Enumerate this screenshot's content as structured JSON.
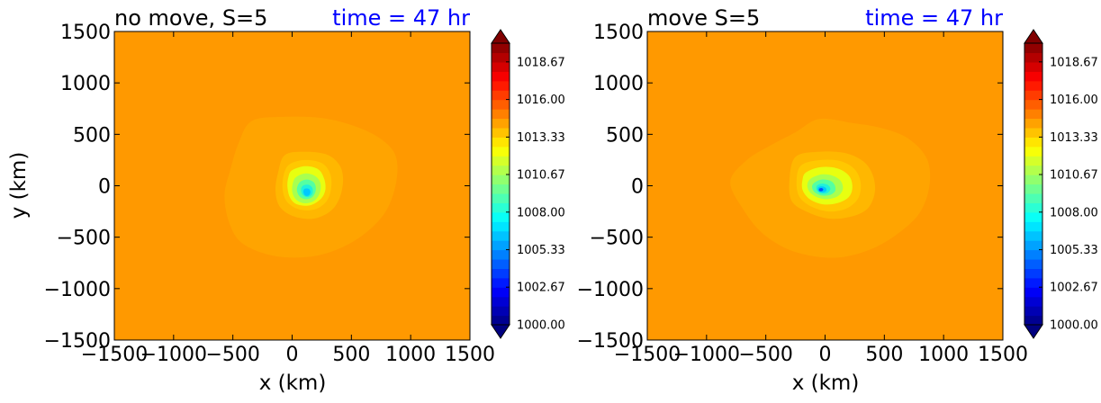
{
  "chart_data": [
    {
      "type": "contourf",
      "title_left": "no move, S=5",
      "title_right": "time = 47 hr",
      "title_right_color": "#0000ff",
      "xlabel": "x (km)",
      "ylabel": "y (km)",
      "xlim": [
        -1500,
        1500
      ],
      "ylim": [
        -1500,
        1500
      ],
      "xticks": [
        -1500,
        -1000,
        -500,
        0,
        500,
        1000,
        1500
      ],
      "yticks": [
        -1500,
        -1000,
        -500,
        0,
        500,
        1000,
        1500
      ],
      "xtick_labels": [
        "−1500",
        "−1000",
        "−500",
        "0",
        "500",
        "1000",
        "1500"
      ],
      "ytick_labels": [
        "−1500",
        "−1000",
        "−500",
        "0",
        "500",
        "1000",
        "1500"
      ],
      "center_km": [
        110,
        -70
      ],
      "min_value_approx": 1007.5,
      "background_value_approx": 1015.5,
      "colorbar": {
        "min": 1000.0,
        "max": 1020.0,
        "levels": 30,
        "extend": "both",
        "tick_labels": [
          "1000.00",
          "1002.67",
          "1005.33",
          "1008.00",
          "1010.67",
          "1013.33",
          "1016.00",
          "1018.67"
        ]
      },
      "contour_rings": [
        {
          "color": "#ffa400",
          "points": [
            [
              -340,
              630
            ],
            [
              -80,
              670
            ],
            [
              240,
              660
            ],
            [
              500,
              590
            ],
            [
              730,
              470
            ],
            [
              870,
              300
            ],
            [
              880,
              50
            ],
            [
              800,
              -230
            ],
            [
              640,
              -440
            ],
            [
              420,
              -600
            ],
            [
              150,
              -690
            ],
            [
              -160,
              -680
            ],
            [
              -420,
              -560
            ],
            [
              -530,
              -360
            ],
            [
              -570,
              -90
            ],
            [
              -520,
              160
            ],
            [
              -450,
              420
            ]
          ]
        },
        {
          "color": "#ffb700",
          "points": [
            [
              -60,
              300
            ],
            [
              120,
              330
            ],
            [
              300,
              300
            ],
            [
              400,
              200
            ],
            [
              430,
              60
            ],
            [
              400,
              -120
            ],
            [
              320,
              -250
            ],
            [
              180,
              -320
            ],
            [
              20,
              -300
            ],
            [
              -100,
              -210
            ],
            [
              -140,
              -60
            ],
            [
              -120,
              120
            ]
          ]
        },
        {
          "color": "#ffc800",
          "points": [
            [
              -20,
              210
            ],
            [
              110,
              250
            ],
            [
              250,
              220
            ],
            [
              320,
              120
            ],
            [
              330,
              -20
            ],
            [
              290,
              -150
            ],
            [
              190,
              -230
            ],
            [
              60,
              -230
            ],
            [
              -40,
              -160
            ],
            [
              -80,
              -40
            ],
            [
              -70,
              110
            ]
          ]
        },
        {
          "color": "#e8ff10",
          "points": [
            [
              0,
              150
            ],
            [
              110,
              190
            ],
            [
              220,
              160
            ],
            [
              270,
              70
            ],
            [
              280,
              -40
            ],
            [
              240,
              -130
            ],
            [
              150,
              -190
            ],
            [
              40,
              -180
            ],
            [
              -20,
              -110
            ],
            [
              -40,
              0
            ],
            [
              -30,
              90
            ]
          ]
        },
        {
          "color": "#a8ff50",
          "points": [
            [
              40,
              90
            ],
            [
              120,
              120
            ],
            [
              200,
              90
            ],
            [
              240,
              20
            ],
            [
              230,
              -80
            ],
            [
              180,
              -150
            ],
            [
              100,
              -170
            ],
            [
              30,
              -130
            ],
            [
              0,
              -50
            ],
            [
              10,
              40
            ]
          ]
        },
        {
          "color": "#55ffa2",
          "points": [
            [
              70,
              40
            ],
            [
              130,
              60
            ],
            [
              185,
              30
            ],
            [
              200,
              -40
            ],
            [
              170,
              -110
            ],
            [
              110,
              -130
            ],
            [
              60,
              -100
            ],
            [
              40,
              -30
            ]
          ]
        },
        {
          "color": "#1ff0dc",
          "points": [
            [
              90,
              0
            ],
            [
              135,
              10
            ],
            [
              170,
              -20
            ],
            [
              170,
              -80
            ],
            [
              130,
              -110
            ],
            [
              90,
              -90
            ],
            [
              75,
              -40
            ]
          ]
        },
        {
          "color": "#00c8ff",
          "points": [
            [
              105,
              -30
            ],
            [
              140,
              -30
            ],
            [
              155,
              -60
            ],
            [
              140,
              -95
            ],
            [
              110,
              -95
            ],
            [
              95,
              -60
            ]
          ]
        }
      ]
    },
    {
      "type": "contourf",
      "title_left": "move S=5",
      "title_right": "time = 47 hr",
      "title_right_color": "#0000ff",
      "xlabel": "x (km)",
      "ylabel": "",
      "xlim": [
        -1500,
        1500
      ],
      "ylim": [
        -1500,
        1500
      ],
      "xticks": [
        -1500,
        -1000,
        -500,
        0,
        500,
        1000,
        1500
      ],
      "yticks": [
        -1500,
        -1000,
        -500,
        0,
        500,
        1000,
        1500
      ],
      "xtick_labels": [
        "−1500",
        "−1000",
        "−500",
        "0",
        "500",
        "1000",
        "1500"
      ],
      "ytick_labels": [
        "−1500",
        "−1000",
        "−500",
        "0",
        "500",
        "1000",
        "1500"
      ],
      "center_km": [
        -40,
        -40
      ],
      "min_value_approx": 1005.5,
      "background_value_approx": 1015.5,
      "colorbar": {
        "min": 1000.0,
        "max": 1020.0,
        "levels": 30,
        "extend": "both",
        "tick_labels": [
          "1000.00",
          "1002.67",
          "1005.33",
          "1008.00",
          "1010.67",
          "1013.33",
          "1016.00",
          "1018.67"
        ]
      },
      "contour_rings": [
        {
          "color": "#ffa400",
          "points": [
            [
              -480,
              380
            ],
            [
              -250,
              520
            ],
            [
              -50,
              650
            ],
            [
              230,
              610
            ],
            [
              480,
              560
            ],
            [
              700,
              460
            ],
            [
              860,
              260
            ],
            [
              880,
              0
            ],
            [
              800,
              -260
            ],
            [
              620,
              -460
            ],
            [
              380,
              -620
            ],
            [
              80,
              -700
            ],
            [
              -260,
              -640
            ],
            [
              -520,
              -470
            ],
            [
              -690,
              -230
            ],
            [
              -800,
              40
            ],
            [
              -660,
              250
            ]
          ]
        },
        {
          "color": "#ffb700",
          "points": [
            [
              -250,
              280
            ],
            [
              -60,
              330
            ],
            [
              160,
              320
            ],
            [
              320,
              240
            ],
            [
              400,
              110
            ],
            [
              420,
              -60
            ],
            [
              360,
              -220
            ],
            [
              220,
              -300
            ],
            [
              40,
              -320
            ],
            [
              -140,
              -260
            ],
            [
              -280,
              -150
            ],
            [
              -300,
              60
            ]
          ]
        },
        {
          "color": "#ffc800",
          "points": [
            [
              -200,
              200
            ],
            [
              -40,
              250
            ],
            [
              130,
              240
            ],
            [
              250,
              160
            ],
            [
              300,
              30
            ],
            [
              280,
              -120
            ],
            [
              180,
              -220
            ],
            [
              30,
              -250
            ],
            [
              -120,
              -200
            ],
            [
              -220,
              -100
            ],
            [
              -240,
              60
            ]
          ]
        },
        {
          "color": "#e8ff10",
          "points": [
            [
              -160,
              130
            ],
            [
              -40,
              180
            ],
            [
              100,
              170
            ],
            [
              200,
              100
            ],
            [
              230,
              -10
            ],
            [
              200,
              -110
            ],
            [
              100,
              -170
            ],
            [
              -20,
              -180
            ],
            [
              -130,
              -130
            ],
            [
              -190,
              -40
            ],
            [
              -190,
              60
            ]
          ]
        },
        {
          "color": "#a8ff50",
          "points": [
            [
              -120,
              70
            ],
            [
              -30,
              110
            ],
            [
              60,
              100
            ],
            [
              130,
              50
            ],
            [
              150,
              -30
            ],
            [
              110,
              -100
            ],
            [
              20,
              -130
            ],
            [
              -70,
              -110
            ],
            [
              -130,
              -60
            ],
            [
              -150,
              10
            ]
          ]
        },
        {
          "color": "#55ffa2",
          "points": [
            [
              -90,
              30
            ],
            [
              -30,
              60
            ],
            [
              40,
              50
            ],
            [
              80,
              10
            ],
            [
              85,
              -50
            ],
            [
              40,
              -90
            ],
            [
              -30,
              -95
            ],
            [
              -90,
              -60
            ],
            [
              -110,
              -10
            ]
          ]
        },
        {
          "color": "#1ff0dc",
          "points": [
            [
              -70,
              0
            ],
            [
              -30,
              20
            ],
            [
              20,
              10
            ],
            [
              45,
              -30
            ],
            [
              20,
              -70
            ],
            [
              -30,
              -75
            ],
            [
              -70,
              -45
            ]
          ]
        },
        {
          "color": "#00c8ff",
          "points": [
            [
              -60,
              -20
            ],
            [
              -30,
              -5
            ],
            [
              5,
              -20
            ],
            [
              10,
              -50
            ],
            [
              -20,
              -65
            ],
            [
              -55,
              -55
            ]
          ]
        },
        {
          "color": "#0050ff",
          "points": [
            [
              -50,
              -30
            ],
            [
              -30,
              -22
            ],
            [
              -15,
              -35
            ],
            [
              -25,
              -52
            ],
            [
              -48,
              -50
            ]
          ]
        }
      ]
    }
  ]
}
